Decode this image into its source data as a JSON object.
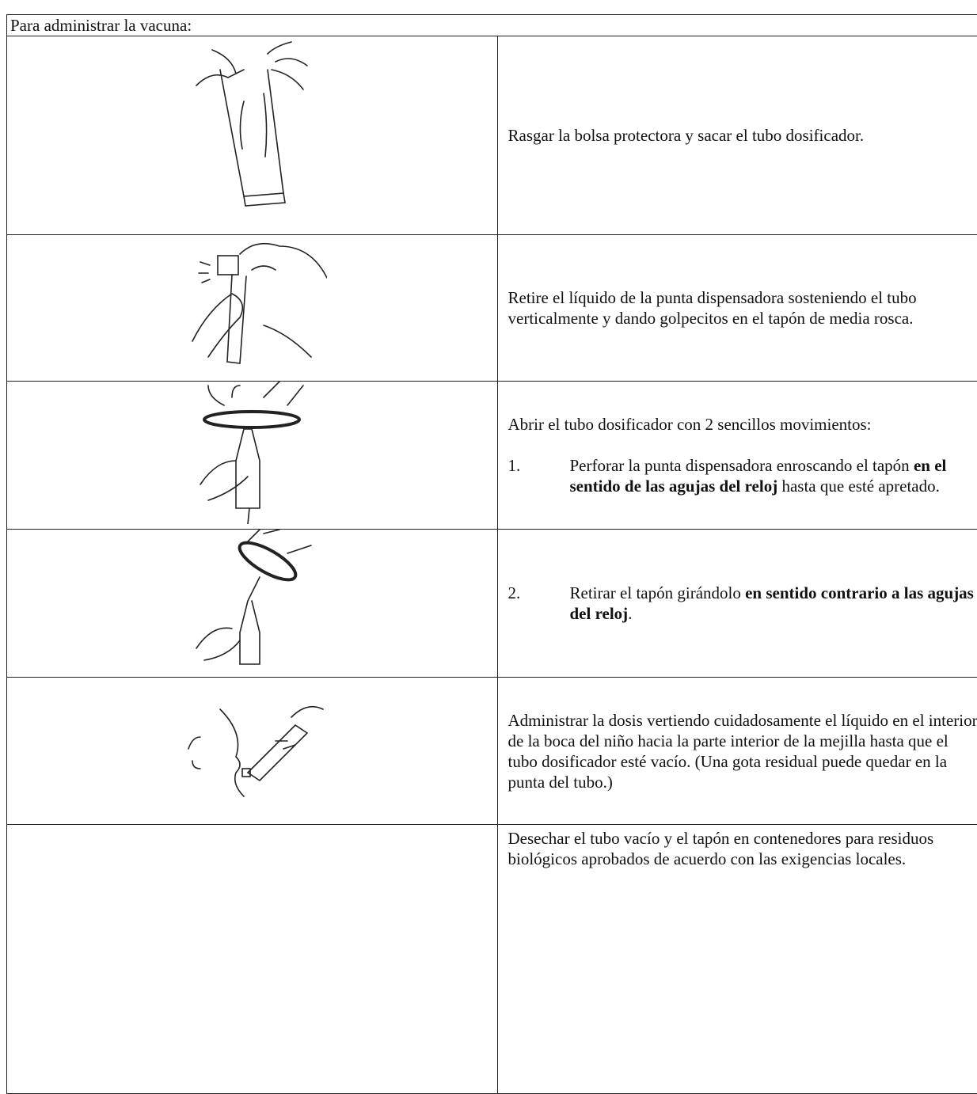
{
  "header": "Para administrar la vacuna:",
  "rows": [
    {
      "paragraphs": [
        {
          "runs": [
            {
              "text": "Rasgar la bolsa protectora y sacar el tubo dosificador."
            }
          ]
        }
      ]
    },
    {
      "paragraphs": [
        {
          "runs": [
            {
              "text": "Retire el líquido de la punta dispensadora sosteniendo el tubo verticalmente y dando golpecitos en el tapón de media rosca."
            }
          ]
        }
      ]
    },
    {
      "paragraphs": [
        {
          "runs": [
            {
              "text": "Abrir el tubo dosificador con 2 sencillos movimientos:"
            }
          ]
        },
        {
          "number": "1.",
          "runs": [
            {
              "text": "Perforar la punta dispensadora enroscando el tapón "
            },
            {
              "text": "en el sentido de las agujas del reloj",
              "bold": true
            },
            {
              "text": " hasta que esté apretado."
            }
          ]
        }
      ]
    },
    {
      "paragraphs": [
        {
          "number": "2.",
          "runs": [
            {
              "text": "Retirar el tapón girándolo "
            },
            {
              "text": "en sentido contrario a las agujas del reloj",
              "bold": true
            },
            {
              "text": "."
            }
          ]
        }
      ]
    },
    {
      "paragraphs": [
        {
          "runs": [
            {
              "text": "Administrar la dosis vertiendo cuidadosamente el líquido en el interior de la boca del niño hacia la parte interior de la mejilla hasta que el tubo dosificador esté vacío. (Una gota residual puede quedar en la punta del tubo.)"
            }
          ]
        }
      ]
    },
    {
      "paragraphs": [
        {
          "runs": [
            {
              "text": "Desechar el tubo vacío y el tapón en contenedores para residuos biológicos aprobados de acuerdo con las exigencias locales."
            }
          ]
        }
      ]
    }
  ]
}
